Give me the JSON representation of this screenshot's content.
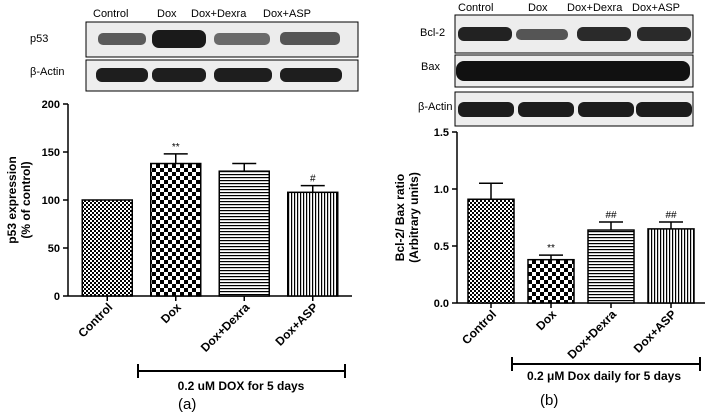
{
  "panel_a": {
    "blot": {
      "lanes": [
        "Control",
        "Dox",
        "Dox+Dexra",
        "Dox+ASP"
      ],
      "rows": [
        "p53",
        "β-Actin"
      ]
    },
    "condition_label": "0.2 uM DOX for 5 days",
    "panel_label": "(a)",
    "chart_data": {
      "type": "bar",
      "categories": [
        "Control",
        "Dox",
        "Dox+Dexra",
        "Dox+ASP"
      ],
      "values": [
        100,
        138,
        130,
        108
      ],
      "errors": [
        0,
        10,
        8,
        7
      ],
      "annotations": [
        "",
        "**",
        "",
        "#"
      ],
      "ylabel_line1": "p53 expression",
      "ylabel_line2": "(% of control)",
      "ylim": [
        0,
        200
      ],
      "yticks": [
        0,
        50,
        100,
        150,
        200
      ],
      "ytick_labels": [
        "0",
        "50",
        "100",
        "150",
        "200"
      ],
      "patterns": [
        "checker",
        "checker-bold",
        "hlines",
        "vlines"
      ]
    }
  },
  "panel_b": {
    "blot": {
      "lanes": [
        "Control",
        "Dox",
        "Dox+Dexra",
        "Dox+ASP"
      ],
      "rows": [
        "Bcl-2",
        "Bax",
        "β-Actin"
      ]
    },
    "condition_label": "0.2 μM Dox daily for 5 days",
    "panel_label": "(b)",
    "chart_data": {
      "type": "bar",
      "categories": [
        "Control",
        "Dox",
        "Dox+Dexra",
        "Dox+ASP"
      ],
      "values": [
        0.91,
        0.38,
        0.64,
        0.65
      ],
      "errors": [
        0.14,
        0.04,
        0.07,
        0.06
      ],
      "annotations": [
        "",
        "**",
        "##",
        "##"
      ],
      "ylabel_line1": "Bcl-2/ Bax ratio",
      "ylabel_line2": "(Arbitrary units)",
      "ylim": [
        0,
        1.5
      ],
      "yticks": [
        0,
        0.5,
        1.0,
        1.5
      ],
      "ytick_labels": [
        "0.0",
        "0.5",
        "1.0",
        "1.5"
      ],
      "patterns": [
        "checker",
        "checker-bold",
        "hlines",
        "vlines"
      ]
    }
  }
}
